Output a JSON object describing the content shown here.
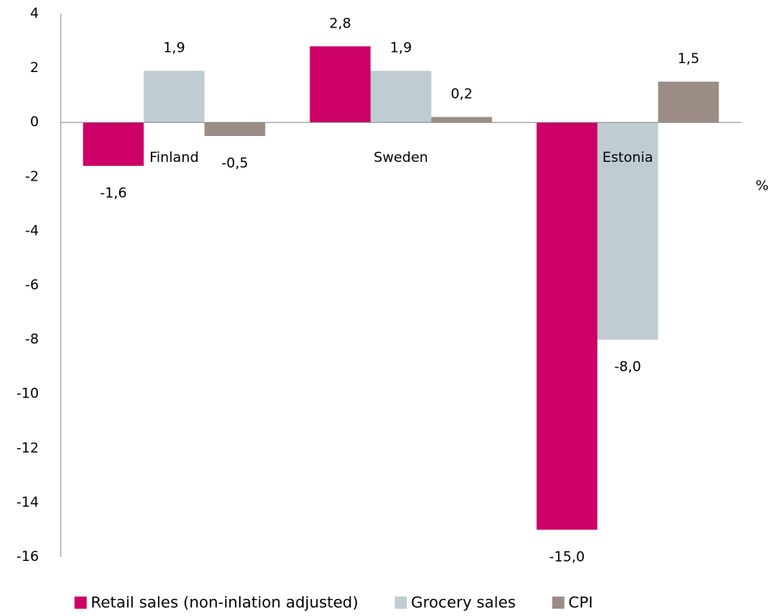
{
  "chart_data": {
    "type": "bar",
    "categories": [
      "Finland",
      "Sweden",
      "Estonia"
    ],
    "series": [
      {
        "name": "Retail sales (non-inlation adjusted)",
        "color": "#cc0066",
        "values": [
          -1.6,
          2.8,
          -15.0
        ],
        "value_labels": [
          "-1,6",
          "2,8",
          "-15,0"
        ]
      },
      {
        "name": "Grocery sales",
        "color": "#bfcdd2",
        "values": [
          1.9,
          1.9,
          -8.0
        ],
        "value_labels": [
          "1,9",
          "1,9",
          "-8,0"
        ]
      },
      {
        "name": "CPI",
        "color": "#9b8d85",
        "values": [
          -0.5,
          0.2,
          1.5
        ],
        "value_labels": [
          "-0,5",
          "0,2",
          "1,5"
        ]
      }
    ],
    "y_label": "%",
    "ylim": [
      -16,
      4
    ],
    "yticks": [
      -16,
      -14,
      -12,
      -10,
      -8,
      -6,
      -4,
      -2,
      0,
      2,
      4
    ],
    "grid": false,
    "legend": "bottom"
  }
}
